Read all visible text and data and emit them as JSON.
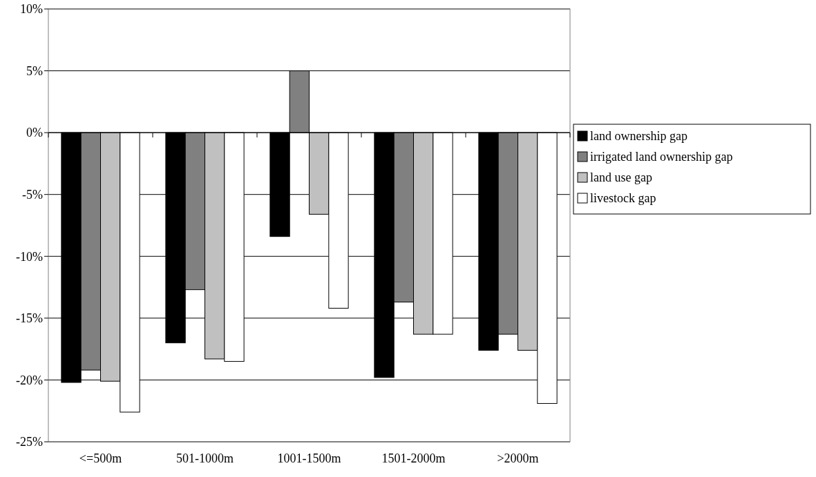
{
  "chart_data": {
    "type": "bar",
    "categories": [
      "<=500m",
      "501-1000m",
      "1001-1500m",
      "1501-2000m",
      ">2000m"
    ],
    "series": [
      {
        "name": "land ownership gap",
        "color": "#000000",
        "values": [
          -20.2,
          -17.0,
          -8.4,
          -19.8,
          -17.6
        ]
      },
      {
        "name": "irrigated land ownership gap",
        "color": "#808080",
        "values": [
          -19.2,
          -12.7,
          5.0,
          -13.7,
          -16.3
        ]
      },
      {
        "name": "land use gap",
        "color": "#c0c0c0",
        "values": [
          -20.1,
          -18.3,
          -6.6,
          -16.3,
          -17.6
        ]
      },
      {
        "name": "livestock gap",
        "color": "#ffffff",
        "values": [
          -22.6,
          -18.5,
          -14.2,
          -16.3,
          -21.9
        ]
      }
    ],
    "ylim": [
      -25,
      10
    ],
    "yticks": [
      {
        "value": -25,
        "label": "-25%"
      },
      {
        "value": -20,
        "label": "-20%"
      },
      {
        "value": -15,
        "label": "-15%"
      },
      {
        "value": -10,
        "label": "-10%"
      },
      {
        "value": -5,
        "label": "-5%"
      },
      {
        "value": 0,
        "label": "0%"
      },
      {
        "value": 5,
        "label": "5%"
      },
      {
        "value": 10,
        "label": "10%"
      }
    ],
    "grid": "y",
    "legend": "right"
  }
}
